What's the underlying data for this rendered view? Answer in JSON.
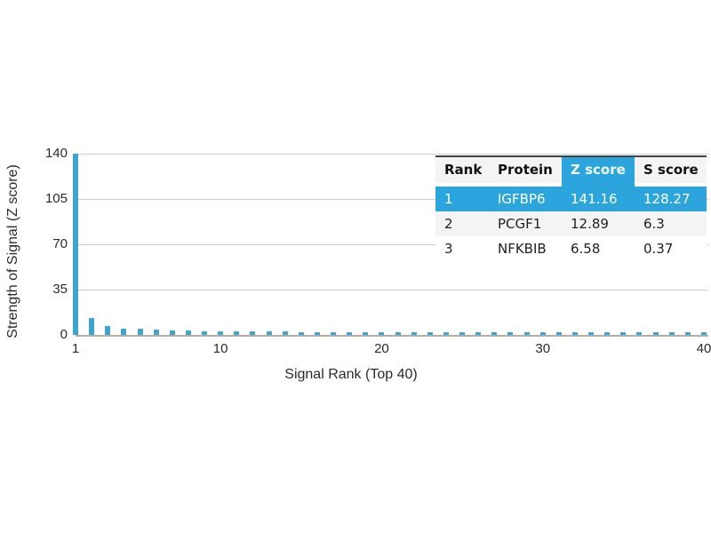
{
  "chart_data": {
    "type": "bar",
    "title": "",
    "xlabel": "Signal Rank (Top 40)",
    "ylabel": "Strength of Signal (Z score)",
    "x": [
      1,
      2,
      3,
      4,
      5,
      6,
      7,
      8,
      9,
      10,
      11,
      12,
      13,
      14,
      15,
      16,
      17,
      18,
      19,
      20,
      21,
      22,
      23,
      24,
      25,
      26,
      27,
      28,
      29,
      30,
      31,
      32,
      33,
      34,
      35,
      36,
      37,
      38,
      39,
      40
    ],
    "values": [
      141.16,
      12.89,
      6.58,
      5.0,
      4.6,
      4.0,
      3.4,
      3.1,
      2.9,
      2.8,
      2.7,
      2.6,
      2.5,
      2.5,
      2.4,
      2.4,
      2.4,
      2.3,
      2.3,
      2.3,
      2.2,
      2.2,
      2.2,
      2.2,
      2.1,
      2.1,
      2.1,
      2.1,
      2.1,
      2.0,
      2.0,
      2.0,
      2.0,
      2.0,
      2.0,
      1.9,
      1.9,
      1.9,
      1.9,
      1.9
    ],
    "ylim": [
      0,
      140
    ],
    "yticks": [
      0,
      35,
      70,
      105,
      140
    ],
    "xticks": [
      1,
      10,
      20,
      30,
      40
    ],
    "grid": "horizontal",
    "legend_position": "none",
    "bar_color": "#3ea5ce",
    "grid_color": "#cecece",
    "axis_line_color": "#b5ada3"
  },
  "table": {
    "headers": [
      "Rank",
      "Protein",
      "Z score",
      "S score"
    ],
    "highlighted_header": "Z score",
    "rows": [
      {
        "rank": "1",
        "protein": "IGFBP6",
        "z_score": "141.16",
        "s_score": "128.27",
        "highlighted": true
      },
      {
        "rank": "2",
        "protein": "PCGF1",
        "z_score": "12.89",
        "s_score": "6.3",
        "highlighted": false
      },
      {
        "rank": "3",
        "protein": "NFKBIB",
        "z_score": "6.58",
        "s_score": "0.37",
        "highlighted": false
      }
    ],
    "highlight_color": "#2ca5dc",
    "header_bg": "#f4f4f4",
    "alt_row_bg": "#f4f4f4"
  }
}
